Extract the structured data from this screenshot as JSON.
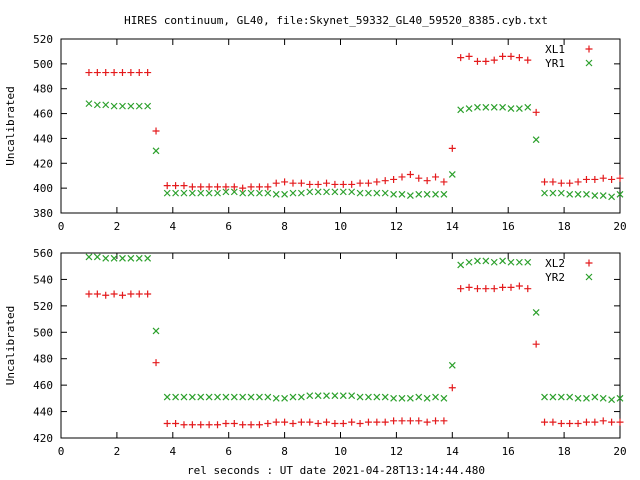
{
  "title": "HIRES continuum, GL40, file:Skynet_59332_GL40_59520_8385.cyb.txt",
  "xlabel": "rel seconds : UT date 2021-04-28T13:14:44.480",
  "chart_data": [
    {
      "type": "scatter",
      "ylabel": "Uncalibrated",
      "xlim": [
        0,
        20
      ],
      "ylim": [
        380,
        520
      ],
      "xticks": [
        0,
        2,
        4,
        6,
        8,
        10,
        12,
        14,
        16,
        18,
        20
      ],
      "yticks": [
        380,
        400,
        420,
        440,
        460,
        480,
        500,
        520
      ],
      "legend_position": "top-right",
      "series": [
        {
          "name": "XL1",
          "marker": "plus",
          "color": "#e41a1c",
          "points": [
            [
              1.0,
              493
            ],
            [
              1.3,
              493
            ],
            [
              1.6,
              493
            ],
            [
              1.9,
              493
            ],
            [
              2.2,
              493
            ],
            [
              2.5,
              493
            ],
            [
              2.8,
              493
            ],
            [
              3.1,
              493
            ],
            [
              3.4,
              446
            ],
            [
              3.8,
              402
            ],
            [
              4.1,
              402
            ],
            [
              4.4,
              402
            ],
            [
              4.7,
              401
            ],
            [
              5.0,
              401
            ],
            [
              5.3,
              401
            ],
            [
              5.6,
              401
            ],
            [
              5.9,
              401
            ],
            [
              6.2,
              401
            ],
            [
              6.5,
              400
            ],
            [
              6.8,
              401
            ],
            [
              7.1,
              401
            ],
            [
              7.4,
              401
            ],
            [
              7.7,
              404
            ],
            [
              8.0,
              405
            ],
            [
              8.3,
              404
            ],
            [
              8.6,
              404
            ],
            [
              8.9,
              403
            ],
            [
              9.2,
              403
            ],
            [
              9.5,
              404
            ],
            [
              9.8,
              403
            ],
            [
              10.1,
              403
            ],
            [
              10.4,
              403
            ],
            [
              10.7,
              404
            ],
            [
              11.0,
              404
            ],
            [
              11.3,
              405
            ],
            [
              11.6,
              406
            ],
            [
              11.9,
              407
            ],
            [
              12.2,
              409
            ],
            [
              12.5,
              411
            ],
            [
              12.8,
              408
            ],
            [
              13.1,
              406
            ],
            [
              13.4,
              409
            ],
            [
              13.7,
              405
            ],
            [
              14.0,
              432
            ],
            [
              14.3,
              505
            ],
            [
              14.6,
              506
            ],
            [
              14.9,
              502
            ],
            [
              15.2,
              502
            ],
            [
              15.5,
              503
            ],
            [
              15.8,
              506
            ],
            [
              16.1,
              506
            ],
            [
              16.4,
              505
            ],
            [
              16.7,
              503
            ],
            [
              17.0,
              461
            ],
            [
              17.3,
              405
            ],
            [
              17.6,
              405
            ],
            [
              17.9,
              404
            ],
            [
              18.2,
              404
            ],
            [
              18.5,
              405
            ],
            [
              18.8,
              407
            ],
            [
              19.1,
              407
            ],
            [
              19.4,
              408
            ],
            [
              19.7,
              407
            ],
            [
              20.0,
              408
            ]
          ]
        },
        {
          "name": "YR1",
          "marker": "x",
          "color": "#2ca02c",
          "points": [
            [
              1.0,
              468
            ],
            [
              1.3,
              467
            ],
            [
              1.6,
              467
            ],
            [
              1.9,
              466
            ],
            [
              2.2,
              466
            ],
            [
              2.5,
              466
            ],
            [
              2.8,
              466
            ],
            [
              3.1,
              466
            ],
            [
              3.4,
              430
            ],
            [
              3.8,
              396
            ],
            [
              4.1,
              396
            ],
            [
              4.4,
              396
            ],
            [
              4.7,
              396
            ],
            [
              5.0,
              396
            ],
            [
              5.3,
              396
            ],
            [
              5.6,
              396
            ],
            [
              5.9,
              397
            ],
            [
              6.2,
              397
            ],
            [
              6.5,
              396
            ],
            [
              6.8,
              396
            ],
            [
              7.1,
              396
            ],
            [
              7.4,
              396
            ],
            [
              7.7,
              395
            ],
            [
              8.0,
              395
            ],
            [
              8.3,
              396
            ],
            [
              8.6,
              396
            ],
            [
              8.9,
              397
            ],
            [
              9.2,
              397
            ],
            [
              9.5,
              397
            ],
            [
              9.8,
              397
            ],
            [
              10.1,
              397
            ],
            [
              10.4,
              397
            ],
            [
              10.7,
              396
            ],
            [
              11.0,
              396
            ],
            [
              11.3,
              396
            ],
            [
              11.6,
              396
            ],
            [
              11.9,
              395
            ],
            [
              12.2,
              395
            ],
            [
              12.5,
              394
            ],
            [
              12.8,
              395
            ],
            [
              13.1,
              395
            ],
            [
              13.4,
              395
            ],
            [
              13.7,
              395
            ],
            [
              14.0,
              411
            ],
            [
              14.3,
              463
            ],
            [
              14.6,
              464
            ],
            [
              14.9,
              465
            ],
            [
              15.2,
              465
            ],
            [
              15.5,
              465
            ],
            [
              15.8,
              465
            ],
            [
              16.1,
              464
            ],
            [
              16.4,
              464
            ],
            [
              16.7,
              465
            ],
            [
              17.0,
              439
            ],
            [
              17.3,
              396
            ],
            [
              17.6,
              396
            ],
            [
              17.9,
              396
            ],
            [
              18.2,
              395
            ],
            [
              18.5,
              395
            ],
            [
              18.8,
              395
            ],
            [
              19.1,
              394
            ],
            [
              19.4,
              394
            ],
            [
              19.7,
              393
            ],
            [
              20.0,
              395
            ]
          ]
        }
      ]
    },
    {
      "type": "scatter",
      "ylabel": "Uncalibrated",
      "xlim": [
        0,
        20
      ],
      "ylim": [
        420,
        560
      ],
      "xticks": [
        0,
        2,
        4,
        6,
        8,
        10,
        12,
        14,
        16,
        18,
        20
      ],
      "yticks": [
        420,
        440,
        460,
        480,
        500,
        520,
        540,
        560
      ],
      "legend_position": "top-right",
      "series": [
        {
          "name": "XL2",
          "marker": "plus",
          "color": "#e41a1c",
          "points": [
            [
              1.0,
              529
            ],
            [
              1.3,
              529
            ],
            [
              1.6,
              528
            ],
            [
              1.9,
              529
            ],
            [
              2.2,
              528
            ],
            [
              2.5,
              529
            ],
            [
              2.8,
              529
            ],
            [
              3.1,
              529
            ],
            [
              3.4,
              477
            ],
            [
              3.8,
              431
            ],
            [
              4.1,
              431
            ],
            [
              4.4,
              430
            ],
            [
              4.7,
              430
            ],
            [
              5.0,
              430
            ],
            [
              5.3,
              430
            ],
            [
              5.6,
              430
            ],
            [
              5.9,
              431
            ],
            [
              6.2,
              431
            ],
            [
              6.5,
              430
            ],
            [
              6.8,
              430
            ],
            [
              7.1,
              430
            ],
            [
              7.4,
              431
            ],
            [
              7.7,
              432
            ],
            [
              8.0,
              432
            ],
            [
              8.3,
              431
            ],
            [
              8.6,
              432
            ],
            [
              8.9,
              432
            ],
            [
              9.2,
              431
            ],
            [
              9.5,
              432
            ],
            [
              9.8,
              431
            ],
            [
              10.1,
              431
            ],
            [
              10.4,
              432
            ],
            [
              10.7,
              431
            ],
            [
              11.0,
              432
            ],
            [
              11.3,
              432
            ],
            [
              11.6,
              432
            ],
            [
              11.9,
              433
            ],
            [
              12.2,
              433
            ],
            [
              12.5,
              433
            ],
            [
              12.8,
              433
            ],
            [
              13.1,
              432
            ],
            [
              13.4,
              433
            ],
            [
              13.7,
              433
            ],
            [
              14.0,
              458
            ],
            [
              14.3,
              533
            ],
            [
              14.6,
              534
            ],
            [
              14.9,
              533
            ],
            [
              15.2,
              533
            ],
            [
              15.5,
              533
            ],
            [
              15.8,
              534
            ],
            [
              16.1,
              534
            ],
            [
              16.4,
              535
            ],
            [
              16.7,
              533
            ],
            [
              17.0,
              491
            ],
            [
              17.3,
              432
            ],
            [
              17.6,
              432
            ],
            [
              17.9,
              431
            ],
            [
              18.2,
              431
            ],
            [
              18.5,
              431
            ],
            [
              18.8,
              432
            ],
            [
              19.1,
              432
            ],
            [
              19.4,
              433
            ],
            [
              19.7,
              432
            ],
            [
              20.0,
              432
            ]
          ]
        },
        {
          "name": "YR2",
          "marker": "x",
          "color": "#2ca02c",
          "points": [
            [
              1.0,
              557
            ],
            [
              1.3,
              557
            ],
            [
              1.6,
              556
            ],
            [
              1.9,
              556
            ],
            [
              2.2,
              556
            ],
            [
              2.5,
              556
            ],
            [
              2.8,
              556
            ],
            [
              3.1,
              556
            ],
            [
              3.4,
              501
            ],
            [
              3.8,
              451
            ],
            [
              4.1,
              451
            ],
            [
              4.4,
              451
            ],
            [
              4.7,
              451
            ],
            [
              5.0,
              451
            ],
            [
              5.3,
              451
            ],
            [
              5.6,
              451
            ],
            [
              5.9,
              451
            ],
            [
              6.2,
              451
            ],
            [
              6.5,
              451
            ],
            [
              6.8,
              451
            ],
            [
              7.1,
              451
            ],
            [
              7.4,
              451
            ],
            [
              7.7,
              450
            ],
            [
              8.0,
              450
            ],
            [
              8.3,
              451
            ],
            [
              8.6,
              451
            ],
            [
              8.9,
              452
            ],
            [
              9.2,
              452
            ],
            [
              9.5,
              452
            ],
            [
              9.8,
              452
            ],
            [
              10.1,
              452
            ],
            [
              10.4,
              452
            ],
            [
              10.7,
              451
            ],
            [
              11.0,
              451
            ],
            [
              11.3,
              451
            ],
            [
              11.6,
              451
            ],
            [
              11.9,
              450
            ],
            [
              12.2,
              450
            ],
            [
              12.5,
              450
            ],
            [
              12.8,
              451
            ],
            [
              13.1,
              450
            ],
            [
              13.4,
              451
            ],
            [
              13.7,
              450
            ],
            [
              14.0,
              475
            ],
            [
              14.3,
              551
            ],
            [
              14.6,
              553
            ],
            [
              14.9,
              554
            ],
            [
              15.2,
              554
            ],
            [
              15.5,
              553
            ],
            [
              15.8,
              554
            ],
            [
              16.1,
              553
            ],
            [
              16.4,
              553
            ],
            [
              16.7,
              553
            ],
            [
              17.0,
              515
            ],
            [
              17.3,
              451
            ],
            [
              17.6,
              451
            ],
            [
              17.9,
              451
            ],
            [
              18.2,
              451
            ],
            [
              18.5,
              450
            ],
            [
              18.8,
              450
            ],
            [
              19.1,
              451
            ],
            [
              19.4,
              450
            ],
            [
              19.7,
              449
            ],
            [
              20.0,
              450
            ]
          ]
        }
      ]
    }
  ]
}
